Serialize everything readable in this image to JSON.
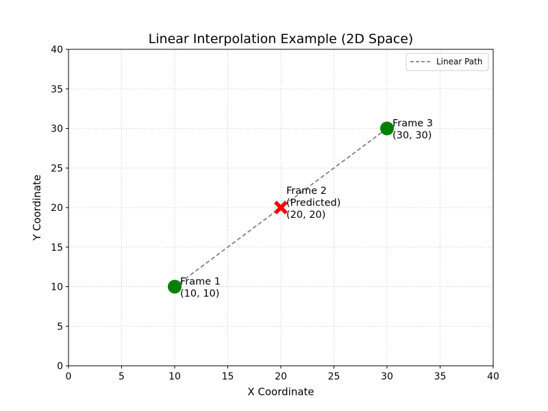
{
  "chart_data": {
    "type": "scatter",
    "title": "Linear Interpolation Example (2D Space)",
    "xlabel": "X Coordinate",
    "ylabel": "Y Coordinate",
    "xlim": [
      0,
      40
    ],
    "ylim": [
      0,
      40
    ],
    "xticks": [
      0,
      5,
      10,
      15,
      20,
      25,
      30,
      35,
      40
    ],
    "yticks": [
      0,
      5,
      10,
      15,
      20,
      25,
      30,
      35,
      40
    ],
    "grid": true,
    "legend_position": "top-right",
    "line": {
      "name": "Linear Path",
      "style": "dashed",
      "color": "#808080",
      "x": [
        10,
        20,
        30
      ],
      "y": [
        10,
        20,
        30
      ]
    },
    "points": [
      {
        "x": 10,
        "y": 10,
        "marker": "circle",
        "color": "#008000",
        "label_lines": [
          "Frame 1",
          "(10, 10)"
        ]
      },
      {
        "x": 20,
        "y": 20,
        "marker": "x",
        "color": "#ff0000",
        "label_lines": [
          "Frame 2",
          "(Predicted)",
          "(20, 20)"
        ]
      },
      {
        "x": 30,
        "y": 30,
        "marker": "circle",
        "color": "#008000",
        "label_lines": [
          "Frame 3",
          "(30, 30)"
        ]
      }
    ]
  }
}
